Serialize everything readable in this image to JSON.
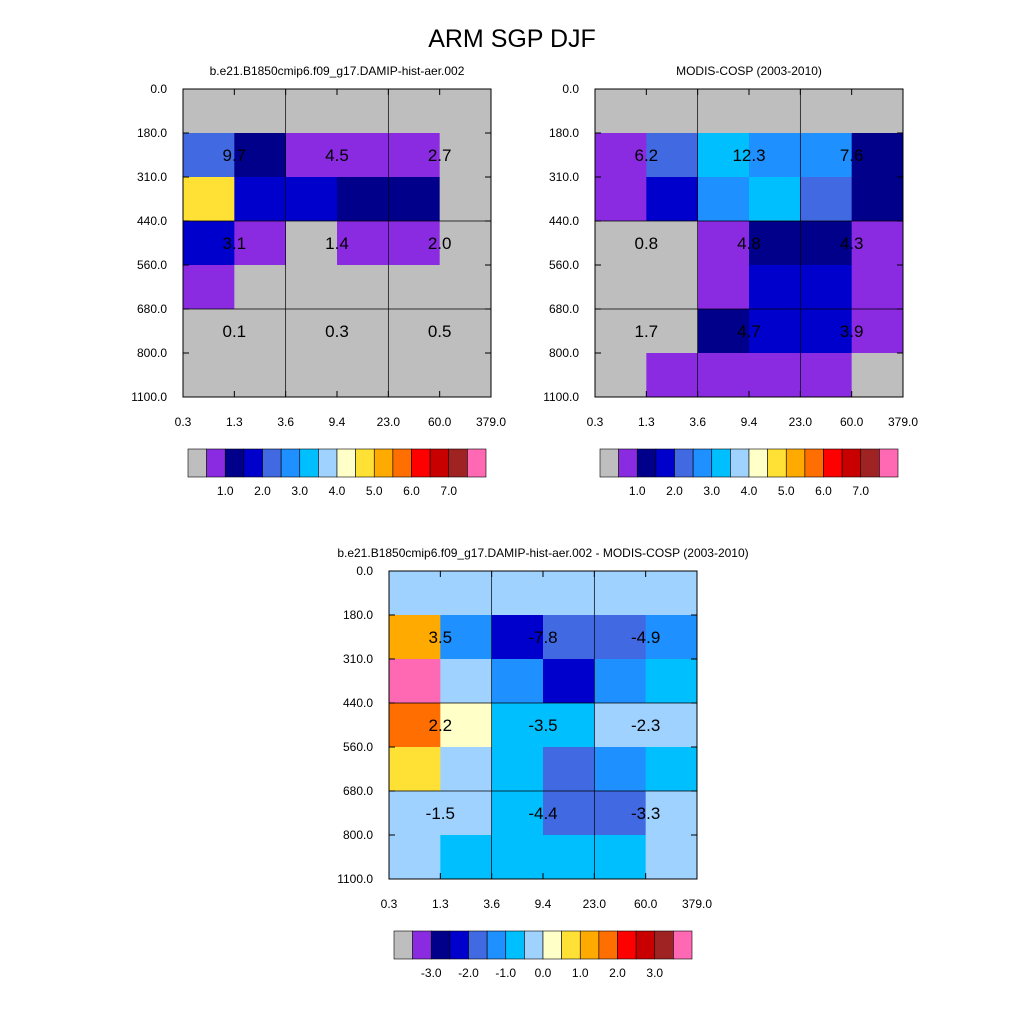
{
  "title": "ARM SGP DJF",
  "palettes": {
    "absolute": [
      "#BEBEBE",
      "#8A2BE2",
      "#00008B",
      "#0000CD",
      "#4169E1",
      "#1E90FF",
      "#00BFFF",
      "#A0D2FF",
      "#FFFFC8",
      "#FFE135",
      "#FFAA00",
      "#FF6E00",
      "#FF0000",
      "#C80000",
      "#A02323",
      "#FF69B4"
    ],
    "difference": [
      "#BEBEBE",
      "#8A2BE2",
      "#00008B",
      "#0000CD",
      "#4169E1",
      "#1E90FF",
      "#00BFFF",
      "#A0D2FF",
      "#FFFFC8",
      "#FFE135",
      "#FFAA00",
      "#FF6E00",
      "#FF0000",
      "#C80000",
      "#A02323",
      "#FF69B4"
    ]
  },
  "chart_data": [
    {
      "type": "heatmap",
      "title": "b.e21.B1850cmip6.f09_g17.DAMIP-hist-aer.002",
      "x_ticks": [
        "0.3",
        "1.3",
        "3.6",
        "9.4",
        "23.0",
        "60.0",
        "379.0"
      ],
      "y_ticks": [
        "0.0",
        "180.0",
        "310.0",
        "440.0",
        "560.0",
        "680.0",
        "800.0",
        "1100.0"
      ],
      "cells": [
        [
          0,
          0,
          0,
          0,
          0,
          0
        ],
        [
          4,
          2,
          1,
          1,
          1,
          0
        ],
        [
          9,
          3,
          3,
          2,
          2,
          0
        ],
        [
          3,
          1,
          0,
          1,
          1,
          0
        ],
        [
          1,
          0,
          0,
          0,
          0,
          0
        ],
        [
          0,
          0,
          0,
          0,
          0,
          0
        ],
        [
          0,
          0,
          0,
          0,
          0,
          0
        ]
      ],
      "annotations": [
        [
          "9.7",
          "4.5",
          "2.7"
        ],
        [
          "3.1",
          "1.4",
          "2.0"
        ],
        [
          "0.1",
          "0.3",
          "0.5"
        ]
      ],
      "colorbar": {
        "palette": "absolute",
        "labels": [
          "1.0",
          "2.0",
          "3.0",
          "4.0",
          "5.0",
          "6.0",
          "7.0"
        ]
      }
    },
    {
      "type": "heatmap",
      "title": "MODIS-COSP (2003-2010)",
      "x_ticks": [
        "0.3",
        "1.3",
        "3.6",
        "9.4",
        "23.0",
        "60.0",
        "379.0"
      ],
      "y_ticks": [
        "0.0",
        "180.0",
        "310.0",
        "440.0",
        "560.0",
        "680.0",
        "800.0",
        "1100.0"
      ],
      "cells": [
        [
          0,
          0,
          0,
          0,
          0,
          0
        ],
        [
          1,
          4,
          6,
          5,
          5,
          2
        ],
        [
          1,
          3,
          5,
          6,
          4,
          2
        ],
        [
          0,
          0,
          1,
          2,
          2,
          1
        ],
        [
          0,
          0,
          1,
          3,
          3,
          1
        ],
        [
          0,
          0,
          2,
          3,
          3,
          1
        ],
        [
          0,
          1,
          1,
          1,
          1,
          0
        ]
      ],
      "annotations": [
        [
          "6.2",
          "12.3",
          "7.6"
        ],
        [
          "0.8",
          "4.8",
          "4.3"
        ],
        [
          "1.7",
          "4.7",
          "3.9"
        ]
      ],
      "colorbar": {
        "palette": "absolute",
        "labels": [
          "1.0",
          "2.0",
          "3.0",
          "4.0",
          "5.0",
          "6.0",
          "7.0"
        ]
      }
    },
    {
      "type": "heatmap",
      "title": "b.e21.B1850cmip6.f09_g17.DAMIP-hist-aer.002 - MODIS-COSP (2003-2010)",
      "x_ticks": [
        "0.3",
        "1.3",
        "3.6",
        "9.4",
        "23.0",
        "60.0",
        "379.0"
      ],
      "y_ticks": [
        "0.0",
        "180.0",
        "310.0",
        "440.0",
        "560.0",
        "680.0",
        "800.0",
        "1100.0"
      ],
      "cells": [
        [
          7,
          7,
          7,
          7,
          7,
          7
        ],
        [
          10,
          5,
          3,
          4,
          4,
          5
        ],
        [
          15,
          7,
          5,
          3,
          5,
          6
        ],
        [
          11,
          8,
          6,
          6,
          7,
          7
        ],
        [
          9,
          7,
          6,
          4,
          5,
          6
        ],
        [
          7,
          7,
          6,
          4,
          4,
          7
        ],
        [
          7,
          6,
          6,
          6,
          6,
          7
        ]
      ],
      "annotations": [
        [
          "3.5",
          "-7.8",
          "-4.9"
        ],
        [
          "2.2",
          "-3.5",
          "-2.3"
        ],
        [
          "-1.5",
          "-4.4",
          "-3.3"
        ]
      ],
      "colorbar": {
        "palette": "difference",
        "labels": [
          "-3.0",
          "-2.0",
          "-1.0",
          "0.0",
          "1.0",
          "2.0",
          "3.0"
        ]
      }
    }
  ]
}
